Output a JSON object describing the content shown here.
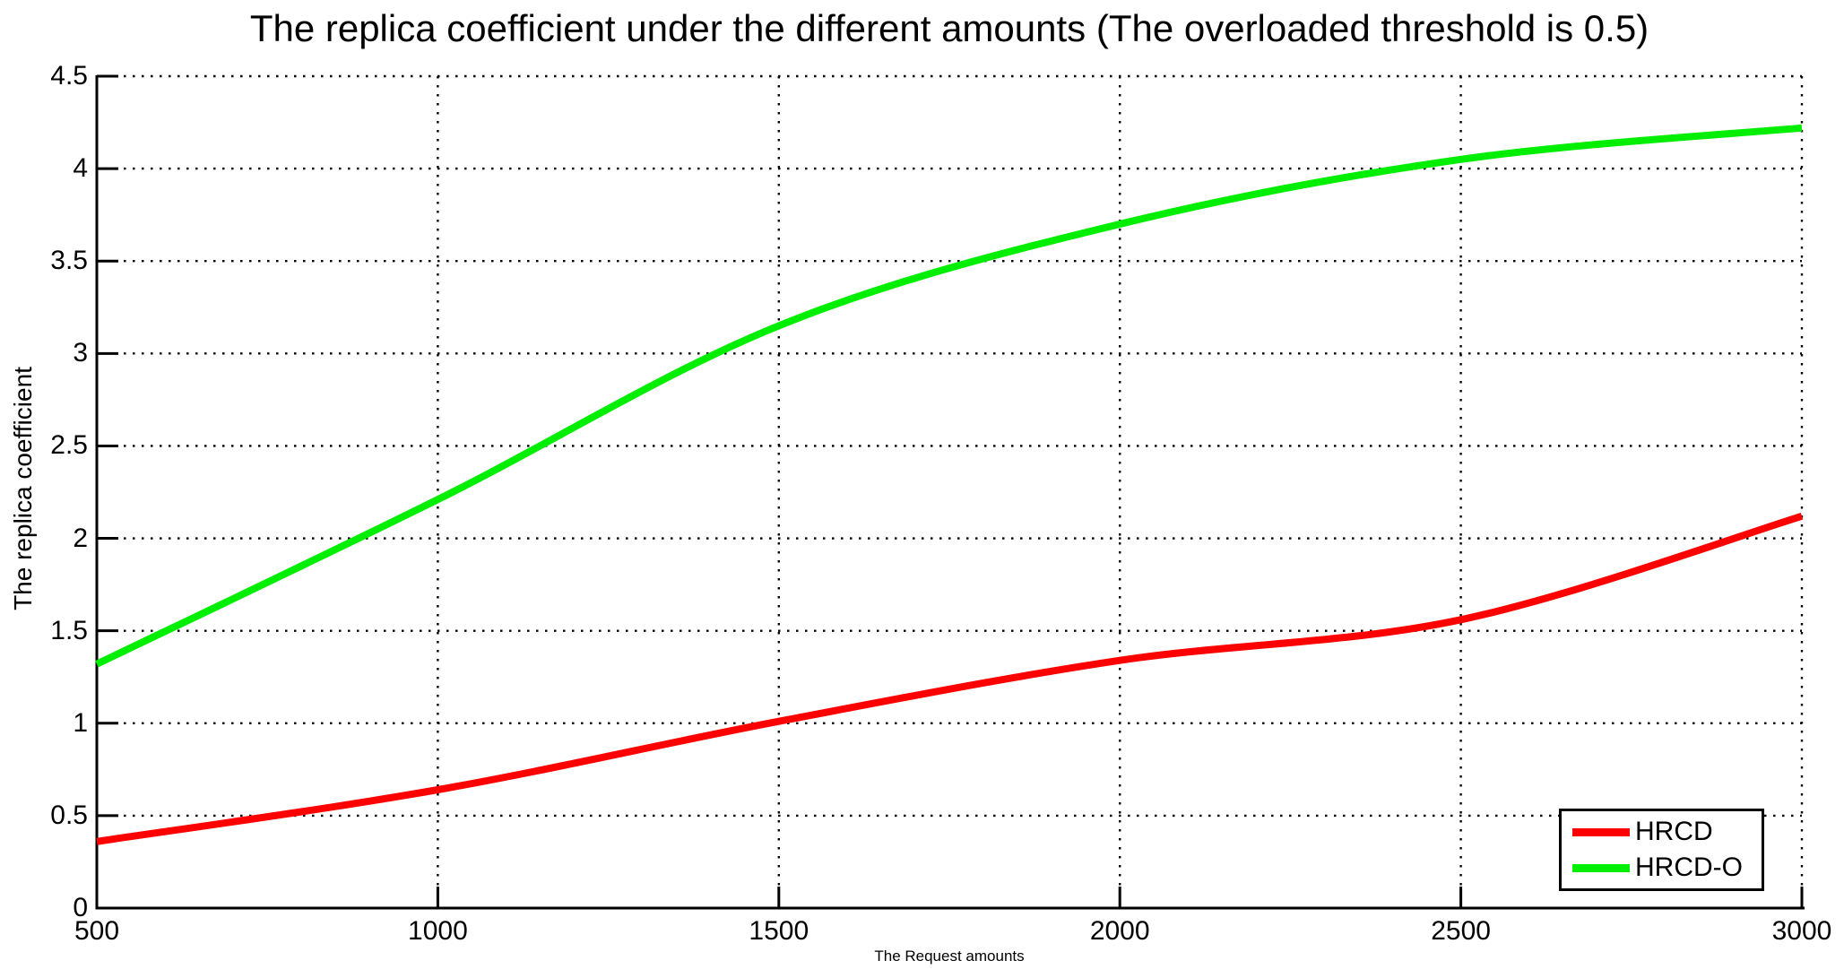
{
  "chart_data": {
    "type": "line",
    "title": "The replica coefficient under the different amounts (The overloaded threshold is 0.5)",
    "xlabel": "The Request amounts",
    "ylabel": "The replica coefficient",
    "xlim": [
      500,
      3000
    ],
    "ylim": [
      0,
      4.5
    ],
    "xticks": [
      500,
      1000,
      1500,
      2000,
      2500,
      3000
    ],
    "yticks": [
      0,
      0.5,
      1,
      1.5,
      2,
      2.5,
      3,
      3.5,
      4,
      4.5
    ],
    "grid": "dotted",
    "background_color": "#ffffff",
    "axis_color": "#000000",
    "legend_position": "bottom-right",
    "x": [
      500,
      1000,
      1500,
      2000,
      2500,
      3000
    ],
    "series": [
      {
        "name": "HRCD",
        "color": "#ff0000",
        "values": [
          0.36,
          0.64,
          1.01,
          1.34,
          1.56,
          2.12
        ]
      },
      {
        "name": "HRCD-O",
        "color": "#00ee00",
        "values": [
          1.32,
          2.21,
          3.15,
          3.7,
          4.05,
          4.22
        ]
      }
    ]
  }
}
